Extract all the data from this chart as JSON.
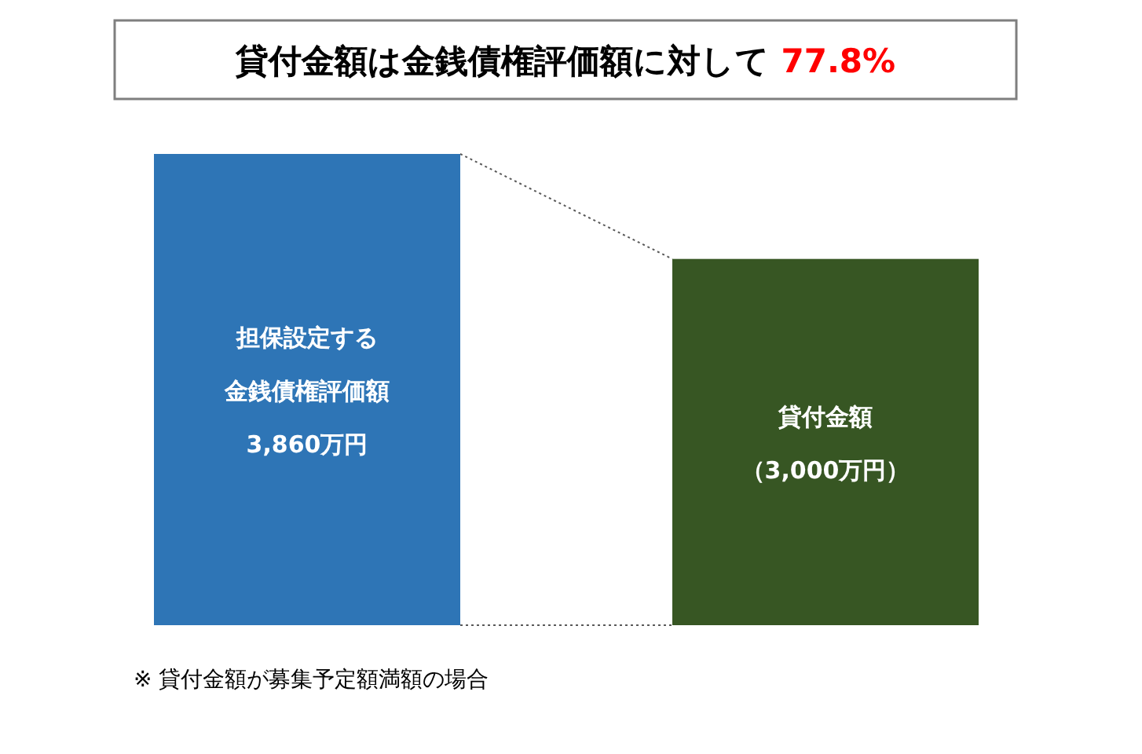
{
  "chart_data": {
    "type": "bar",
    "title": "貸付金額は金銭債権評価額に対して 77.8%",
    "categories": [
      "担保設定する金銭債権評価額",
      "貸付金額"
    ],
    "values": [
      3860,
      3000
    ],
    "value_labels": [
      "3,860万円",
      "（3,000万円）"
    ],
    "colors": [
      "#2e75b6",
      "#375623"
    ],
    "annotations": [
      "※ 貸付金額が募集予定額満額の場合"
    ]
  }
}
